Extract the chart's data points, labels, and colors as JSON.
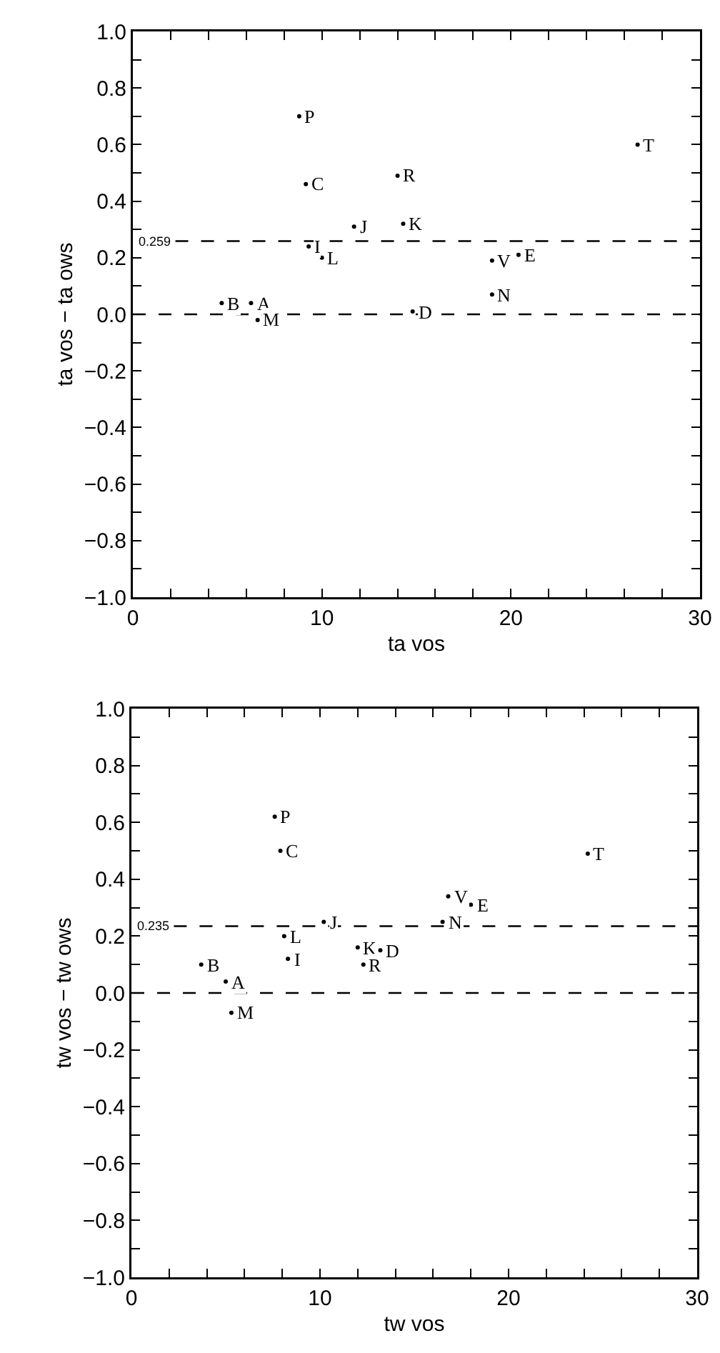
{
  "chart_data": [
    {
      "type": "scatter",
      "xlabel": "ta vos",
      "ylabel": "ta vos − ta ows",
      "marker": "circle",
      "grid": false,
      "xlim": [
        0,
        30
      ],
      "ylim": [
        -1.0,
        1.0
      ],
      "xticks": [
        0,
        {
          "value": 2,
          "label": null
        },
        {
          "value": 4,
          "label": null
        },
        {
          "value": 6,
          "label": null
        },
        {
          "value": 8,
          "label": null
        },
        10,
        {
          "value": 12,
          "label": null
        },
        {
          "value": 14,
          "label": null
        },
        {
          "value": 16,
          "label": null
        },
        {
          "value": 18,
          "label": null
        },
        20,
        {
          "value": 22,
          "label": null
        },
        {
          "value": 24,
          "label": null
        },
        {
          "value": 26,
          "label": null
        },
        {
          "value": 28,
          "label": null
        },
        30
      ],
      "yticks": [
        {
          "value": -1.0,
          "label": "−1.0"
        },
        {
          "value": -0.9,
          "label": null
        },
        {
          "value": -0.8,
          "label": "−0.8"
        },
        {
          "value": -0.7,
          "label": null
        },
        {
          "value": -0.6,
          "label": "−0.6"
        },
        {
          "value": -0.5,
          "label": null
        },
        {
          "value": -0.4,
          "label": "−0.4"
        },
        {
          "value": -0.3,
          "label": null
        },
        {
          "value": -0.2,
          "label": "−0.2"
        },
        {
          "value": -0.1,
          "label": null
        },
        {
          "value": 0,
          "label": "0.0"
        },
        {
          "value": 0.1,
          "label": null
        },
        {
          "value": 0.2,
          "label": "0.2"
        },
        {
          "value": 0.3,
          "label": null
        },
        {
          "value": 0.4,
          "label": "0.4"
        },
        {
          "value": 0.5,
          "label": null
        },
        {
          "value": 0.6,
          "label": "0.6"
        },
        {
          "value": 0.7,
          "label": null
        },
        {
          "value": 0.8,
          "label": "0.8"
        },
        {
          "value": 0.9,
          "label": null
        },
        {
          "value": 1.0,
          "label": "1.0"
        }
      ],
      "ref_lines": [
        {
          "axis": "y",
          "value": 0,
          "line_style": "dashed",
          "color": "#000000"
        },
        {
          "axis": "y",
          "value": 0.259,
          "label": "0.259",
          "line_style": "dashed",
          "color": "#000000"
        }
      ],
      "series": [
        {
          "color": "#000000",
          "x": [
            6.25,
            4.7,
            9.15,
            14.8,
            20.4,
            9.3,
            11.7,
            14.3,
            10.0,
            6.6,
            19.0,
            8.8,
            14.0,
            26.7,
            19.0
          ],
          "values": [
            0.04,
            0.04,
            0.46,
            0.01,
            0.21,
            0.24,
            0.31,
            0.32,
            0.2,
            -0.02,
            0.07,
            0.7,
            0.49,
            0.6,
            0.19
          ],
          "value_labels": [
            "A",
            "B",
            "C",
            "D",
            "E",
            "I",
            "J",
            "K",
            "L",
            "M",
            "N",
            "P",
            "R",
            "T",
            "V"
          ]
        }
      ]
    },
    {
      "type": "scatter",
      "xlabel": "tw vos",
      "ylabel": "tw vos − tw ows",
      "marker": "circle",
      "grid": false,
      "xlim": [
        0,
        30
      ],
      "ylim": [
        -1.0,
        1.0
      ],
      "xticks": [
        0,
        {
          "value": 2,
          "label": null
        },
        {
          "value": 4,
          "label": null
        },
        {
          "value": 6,
          "label": null
        },
        {
          "value": 8,
          "label": null
        },
        10,
        {
          "value": 12,
          "label": null
        },
        {
          "value": 14,
          "label": null
        },
        {
          "value": 16,
          "label": null
        },
        {
          "value": 18,
          "label": null
        },
        20,
        {
          "value": 22,
          "label": null
        },
        {
          "value": 24,
          "label": null
        },
        {
          "value": 26,
          "label": null
        },
        {
          "value": 28,
          "label": null
        },
        30
      ],
      "yticks": [
        {
          "value": -1.0,
          "label": "−1.0"
        },
        {
          "value": -0.9,
          "label": null
        },
        {
          "value": -0.8,
          "label": "−0.8"
        },
        {
          "value": -0.7,
          "label": null
        },
        {
          "value": -0.6,
          "label": "−0.6"
        },
        {
          "value": -0.5,
          "label": null
        },
        {
          "value": -0.4,
          "label": "−0.4"
        },
        {
          "value": -0.3,
          "label": null
        },
        {
          "value": -0.2,
          "label": "−0.2"
        },
        {
          "value": -0.1,
          "label": null
        },
        {
          "value": 0,
          "label": "0.0"
        },
        {
          "value": 0.1,
          "label": null
        },
        {
          "value": 0.2,
          "label": "0.2"
        },
        {
          "value": 0.3,
          "label": null
        },
        {
          "value": 0.4,
          "label": "0.4"
        },
        {
          "value": 0.5,
          "label": null
        },
        {
          "value": 0.6,
          "label": "0.6"
        },
        {
          "value": 0.7,
          "label": null
        },
        {
          "value": 0.8,
          "label": "0.8"
        },
        {
          "value": 0.9,
          "label": null
        },
        {
          "value": 1.0,
          "label": "1.0"
        }
      ],
      "ref_lines": [
        {
          "axis": "y",
          "value": 0,
          "line_style": "dashed",
          "color": "#000000"
        },
        {
          "axis": "y",
          "value": 0.235,
          "label": "0.235",
          "line_style": "dashed",
          "color": "#000000"
        }
      ],
      "series": [
        {
          "color": "#000000",
          "x": [
            5.0,
            3.7,
            7.9,
            13.2,
            18.0,
            8.3,
            10.2,
            12.0,
            8.1,
            5.3,
            16.5,
            7.6,
            12.3,
            24.2,
            16.8
          ],
          "values": [
            0.04,
            0.1,
            0.5,
            0.15,
            0.31,
            0.12,
            0.25,
            0.16,
            0.2,
            -0.07,
            0.25,
            0.62,
            0.1,
            0.49,
            0.34
          ],
          "value_labels": [
            "A",
            "B",
            "C",
            "D",
            "E",
            "I",
            "J",
            "K",
            "L",
            "M",
            "N",
            "P",
            "R",
            "T",
            "V"
          ]
        }
      ]
    }
  ]
}
